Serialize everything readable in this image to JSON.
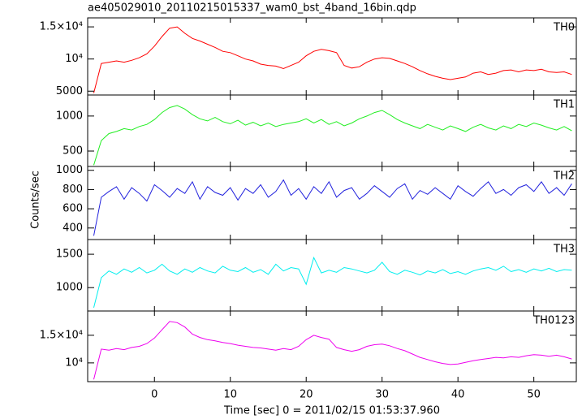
{
  "chart_data": {
    "type": "line",
    "title": "ae405029010_20110215015337_wam0_bst_4band_16bin.qdp",
    "xlabel": "Time [sec] 0 = 2011/02/15 01:53:37.960",
    "ylabel": "Counts/sec",
    "xlim": [
      -8.8,
      55.6
    ],
    "xticks": [
      0,
      10,
      20,
      30,
      40,
      50
    ],
    "x": [
      -8,
      -7,
      -6,
      -5,
      -4,
      -3,
      -2,
      -1,
      0,
      1,
      2,
      3,
      4,
      5,
      6,
      7,
      8,
      9,
      10,
      11,
      12,
      13,
      14,
      15,
      16,
      17,
      18,
      19,
      20,
      21,
      22,
      23,
      24,
      25,
      26,
      27,
      28,
      29,
      30,
      31,
      32,
      33,
      34,
      35,
      36,
      37,
      38,
      39,
      40,
      41,
      42,
      43,
      44,
      45,
      46,
      47,
      48,
      49,
      50,
      51,
      52,
      53,
      54,
      55
    ],
    "panels": [
      {
        "name": "TH0",
        "color": "#ff0000",
        "ylim": [
          4400,
          16400
        ],
        "yticks": [
          5000,
          {
            "value": 10000,
            "label": "10⁴"
          },
          {
            "value": 15000,
            "label": "1.5×10⁴"
          }
        ],
        "values": [
          4700,
          9300,
          9500,
          9700,
          9500,
          9800,
          10200,
          10800,
          12000,
          13500,
          14800,
          15000,
          14000,
          13200,
          12800,
          12300,
          11800,
          11200,
          11000,
          10500,
          10000,
          9700,
          9200,
          9000,
          8900,
          8500,
          9000,
          9500,
          10500,
          11200,
          11500,
          11300,
          11000,
          9000,
          8600,
          8800,
          9500,
          10000,
          10200,
          10100,
          9700,
          9300,
          8800,
          8200,
          7700,
          7300,
          7000,
          6800,
          7000,
          7200,
          7800,
          8000,
          7600,
          7800,
          8200,
          8300,
          8000,
          8300,
          8200,
          8400,
          8000,
          7900,
          8000,
          7600
        ]
      },
      {
        "name": "TH1",
        "color": "#22ee22",
        "ylim": [
          280,
          1300
        ],
        "yticks": [
          500,
          1000
        ],
        "values": [
          300,
          650,
          750,
          780,
          820,
          800,
          850,
          880,
          950,
          1050,
          1120,
          1150,
          1100,
          1020,
          960,
          930,
          980,
          920,
          890,
          940,
          870,
          910,
          860,
          900,
          850,
          880,
          900,
          920,
          960,
          900,
          950,
          880,
          920,
          860,
          900,
          960,
          1000,
          1050,
          1080,
          1020,
          950,
          900,
          860,
          820,
          880,
          840,
          800,
          860,
          820,
          780,
          840,
          880,
          830,
          800,
          860,
          820,
          880,
          850,
          900,
          870,
          830,
          800,
          850,
          790
        ]
      },
      {
        "name": "TH2",
        "color": "#2222dd",
        "ylim": [
          280,
          1040
        ],
        "yticks": [
          400,
          600,
          800,
          1000
        ],
        "values": [
          320,
          720,
          780,
          830,
          700,
          820,
          760,
          680,
          850,
          790,
          720,
          810,
          760,
          880,
          700,
          830,
          770,
          740,
          820,
          690,
          810,
          760,
          850,
          720,
          780,
          900,
          740,
          810,
          700,
          830,
          760,
          880,
          720,
          790,
          820,
          700,
          760,
          840,
          780,
          720,
          810,
          860,
          700,
          790,
          750,
          820,
          760,
          700,
          840,
          780,
          730,
          810,
          880,
          760,
          800,
          740,
          820,
          850,
          780,
          880,
          760,
          820,
          740,
          860
        ]
      },
      {
        "name": "TH3",
        "color": "#00eeee",
        "ylim": [
          650,
          1720
        ],
        "yticks": [
          1000,
          1500
        ],
        "values": [
          700,
          1150,
          1250,
          1200,
          1280,
          1230,
          1300,
          1220,
          1260,
          1350,
          1250,
          1200,
          1280,
          1230,
          1300,
          1250,
          1220,
          1320,
          1260,
          1240,
          1300,
          1230,
          1270,
          1200,
          1350,
          1250,
          1300,
          1280,
          1050,
          1450,
          1220,
          1260,
          1230,
          1300,
          1280,
          1250,
          1220,
          1260,
          1380,
          1240,
          1200,
          1260,
          1230,
          1190,
          1250,
          1220,
          1270,
          1210,
          1240,
          1200,
          1250,
          1280,
          1300,
          1260,
          1320,
          1240,
          1270,
          1230,
          1280,
          1250,
          1290,
          1240,
          1270,
          1260
        ]
      },
      {
        "name": "TH0123",
        "color": "#ee00ee",
        "ylim": [
          6600,
          19400
        ],
        "yticks": [
          {
            "value": 10000,
            "label": "10⁴"
          },
          {
            "value": 15000,
            "label": "1.5×10⁴"
          }
        ],
        "values": [
          7000,
          12500,
          12300,
          12600,
          12400,
          12800,
          13000,
          13500,
          14500,
          16000,
          17500,
          17300,
          16500,
          15200,
          14600,
          14200,
          14000,
          13700,
          13500,
          13200,
          13000,
          12800,
          12700,
          12500,
          12300,
          12600,
          12400,
          13000,
          14200,
          15000,
          14600,
          14300,
          12800,
          12400,
          12100,
          12400,
          13000,
          13300,
          13400,
          13100,
          12600,
          12200,
          11600,
          11000,
          10600,
          10200,
          9900,
          9700,
          9800,
          10100,
          10400,
          10600,
          10800,
          11000,
          10900,
          11100,
          11000,
          11300,
          11500,
          11400,
          11200,
          11400,
          11100,
          10700
        ]
      }
    ]
  }
}
